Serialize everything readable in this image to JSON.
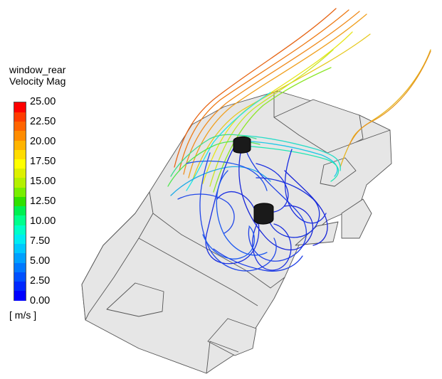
{
  "legend": {
    "title_line1": "window_rear",
    "title_line2": "Velocity Mag",
    "unit": "[ m/s ]",
    "ticks": [
      "25.00",
      "22.50",
      "20.00",
      "17.50",
      "15.00",
      "12.50",
      "10.00",
      "7.50",
      "5.00",
      "2.50",
      "0.00"
    ],
    "range": [
      0,
      25
    ],
    "colors": [
      "#0000ff",
      "#0028ff",
      "#0050ff",
      "#0078ff",
      "#00a0ff",
      "#00c8ff",
      "#00ecf2",
      "#00ffc8",
      "#00ff8c",
      "#00f050",
      "#30e000",
      "#78ee00",
      "#b4f000",
      "#ddf000",
      "#ffff00",
      "#ffdc00",
      "#ffb400",
      "#ff8c00",
      "#ff6400",
      "#ff3c00",
      "#ff0000"
    ]
  },
  "scene": {
    "body_fill": "#e6e6e6",
    "body_stroke": "#555555",
    "obstacle_fill": "#1a1a1a",
    "streamline_palette": {
      "slow": "#1a2ee0",
      "mid_slow": "#1e78ff",
      "medium": "#1ee6e6",
      "mid_fast": "#8ce628",
      "fast_yellow": "#e6e61e",
      "fast_orange": "#f08c1e",
      "fastest": "#e6641e"
    }
  }
}
